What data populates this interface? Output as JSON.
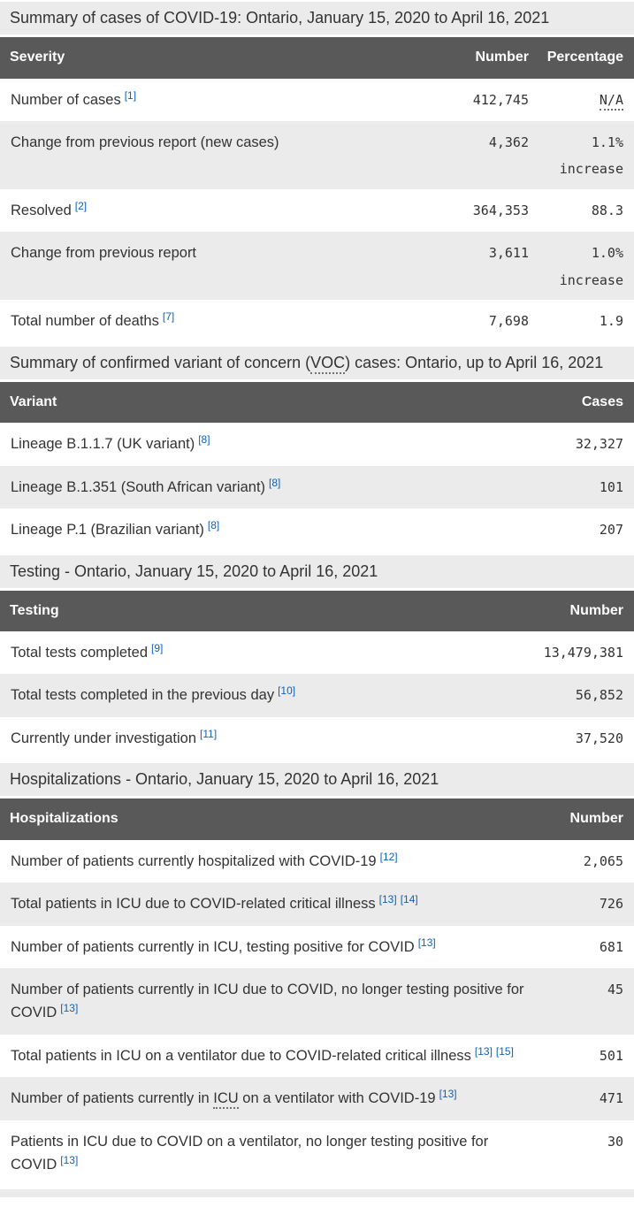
{
  "colors": {
    "table_header_bg": "#595959",
    "table_header_text": "#ffffff",
    "band_bg": "#ebebeb",
    "body_text": "#333333",
    "footnote_link": "#0d62b8"
  },
  "tables": [
    {
      "caption": "Summary of cases of COVID-19: Ontario, January 15, 2020 to April 16, 2021",
      "columns": [
        "Severity",
        "Number",
        "Percentage"
      ],
      "rows": [
        {
          "label": "Number of cases",
          "refs": [
            "[1]"
          ],
          "number": "412,745",
          "percentage": "N/A"
        },
        {
          "label": "Change from previous report (new cases)",
          "refs": [],
          "number": "4,362",
          "percentage": "1.1%",
          "percentage_note": "increase"
        },
        {
          "label": "Resolved",
          "refs": [
            "[2]"
          ],
          "number": "364,353",
          "percentage": "88.3"
        },
        {
          "label": "Change from previous report",
          "refs": [],
          "number": "3,611",
          "percentage": "1.0%",
          "percentage_note": "increase"
        },
        {
          "label": "Total number of deaths",
          "refs": [
            "[7]"
          ],
          "number": "7,698",
          "percentage": "1.9"
        }
      ]
    },
    {
      "caption_pre": "Summary of confirmed variant of concern (",
      "caption_abbr": "VOC",
      "caption_post": ") cases: Ontario, up to April 16, 2021",
      "columns": [
        "Variant",
        "Cases"
      ],
      "rows": [
        {
          "label": "Lineage B.1.1.7 (UK variant)",
          "refs": [
            "[8]"
          ],
          "number": "32,327"
        },
        {
          "label": "Lineage B.1.351 (South African variant)",
          "refs": [
            "[8]"
          ],
          "number": "101"
        },
        {
          "label": "Lineage P.1 (Brazilian variant)",
          "refs": [
            "[8]"
          ],
          "number": "207"
        }
      ]
    },
    {
      "caption": "Testing - Ontario, January 15, 2020 to April 16, 2021",
      "columns": [
        "Testing",
        "Number"
      ],
      "rows": [
        {
          "label": "Total tests completed",
          "refs": [
            "[9]"
          ],
          "number": "13,479,381"
        },
        {
          "label": "Total tests completed in the previous day",
          "refs": [
            "[10]"
          ],
          "number": "56,852"
        },
        {
          "label": "Currently under investigation",
          "refs": [
            "[11]"
          ],
          "number": "37,520"
        }
      ]
    },
    {
      "caption": "Hospitalizations - Ontario, January 15, 2020 to April 16, 2021",
      "columns": [
        "Hospitalizations",
        "Number"
      ],
      "rows": [
        {
          "label": "Number of patients currently hospitalized with COVID-19",
          "refs": [
            "[12]"
          ],
          "number": "2,065"
        },
        {
          "label": "Total patients in ICU due to COVID-related critical illness",
          "refs": [
            "[13]",
            "[14]"
          ],
          "number": "726"
        },
        {
          "label": "Number of patients currently in ICU, testing positive for COVID",
          "refs": [
            "[13]"
          ],
          "number": "681"
        },
        {
          "label": "Number of patients currently in ICU due to COVID, no longer testing positive for COVID",
          "refs": [
            "[13]"
          ],
          "number": "45"
        },
        {
          "label": "Total patients in ICU on a ventilator due to COVID-related critical illness",
          "refs": [
            "[13]",
            "[15]"
          ],
          "number": "501"
        },
        {
          "label_pre": "Number of patients currently in ",
          "label_abbr": "ICU",
          "label_post": " on a ventilator with COVID-19",
          "refs": [
            "[13]"
          ],
          "number": "471"
        },
        {
          "label": "Patients in ICU due to COVID on a ventilator, no longer testing positive for COVID",
          "refs": [
            "[13]"
          ],
          "number": "30"
        }
      ]
    }
  ]
}
